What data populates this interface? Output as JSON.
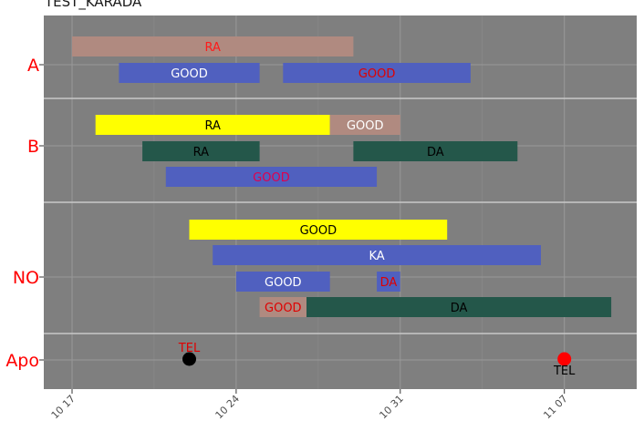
{
  "chart_data": {
    "type": "timeline",
    "title": "TEST_KARADA",
    "x_range": [
      "2024-10-17",
      "2024-11-10"
    ],
    "x_ticks": [
      "10 17",
      "10 24",
      "10 31",
      "11 07"
    ],
    "categories": [
      "A",
      "B",
      "NO",
      "Apo"
    ],
    "panel_color": "#7f7f7f",
    "bars": [
      {
        "category": "A",
        "start": "2024-10-17",
        "end": "2024-10-29",
        "label": "RA",
        "fill": "#b08a80",
        "text_color": "#ff1a1a"
      },
      {
        "category": "A",
        "start": "2024-10-19",
        "end": "2024-10-25",
        "label": "GOOD",
        "fill": "#5060bf",
        "text_color": "#ffffff"
      },
      {
        "category": "A",
        "start": "2024-10-26",
        "end": "2024-11-03",
        "label": "GOOD",
        "fill": "#5060bf",
        "text_color": "#e00000"
      },
      {
        "category": "B",
        "start": "2024-10-18",
        "end": "2024-10-28",
        "label": "RA",
        "fill": "#ffff00",
        "text_color": "#000000"
      },
      {
        "category": "B",
        "start": "2024-10-28",
        "end": "2024-10-31",
        "label": "GOOD",
        "fill": "#b08a80",
        "text_color": "#ffffff"
      },
      {
        "category": "B",
        "start": "2024-10-20",
        "end": "2024-10-25",
        "label": "RA",
        "fill": "#24574a",
        "text_color": "#000000"
      },
      {
        "category": "B",
        "start": "2024-10-29",
        "end": "2024-11-05",
        "label": "DA",
        "fill": "#24574a",
        "text_color": "#000000"
      },
      {
        "category": "B",
        "start": "2024-10-21",
        "end": "2024-10-30",
        "label": "GOOD",
        "fill": "#5060bf",
        "text_color": "#e0004e"
      },
      {
        "category": "NO",
        "start": "2024-10-22",
        "end": "2024-11-02",
        "label": "GOOD",
        "fill": "#ffff00",
        "text_color": "#000000"
      },
      {
        "category": "NO",
        "start": "2024-10-23",
        "end": "2024-11-06",
        "label": "KA",
        "fill": "#5060bf",
        "text_color": "#ffffff"
      },
      {
        "category": "NO",
        "start": "2024-10-24",
        "end": "2024-10-28",
        "label": "GOOD",
        "fill": "#5060bf",
        "text_color": "#ffffff"
      },
      {
        "category": "NO",
        "start": "2024-10-30",
        "end": "2024-10-31",
        "label": "DA",
        "fill": "#5060bf",
        "text_color": "#e00000"
      },
      {
        "category": "NO",
        "start": "2024-10-25",
        "end": "2024-10-27",
        "label": "GOOD",
        "fill": "#b08a80",
        "text_color": "#e00000"
      },
      {
        "category": "NO",
        "start": "2024-10-27",
        "end": "2024-11-09",
        "label": "DA",
        "fill": "#24574a",
        "text_color": "#000000"
      }
    ],
    "points": [
      {
        "category": "Apo",
        "date": "2024-10-22",
        "label": "TEL",
        "fill": "#000000",
        "text_color": "#e00000",
        "label_position": "above"
      },
      {
        "category": "Apo",
        "date": "2024-11-07",
        "label": "TEL",
        "fill": "#ff0000",
        "text_color": "#000000",
        "label_position": "below"
      }
    ],
    "category_label_color": "#ff0000",
    "grid": true
  }
}
